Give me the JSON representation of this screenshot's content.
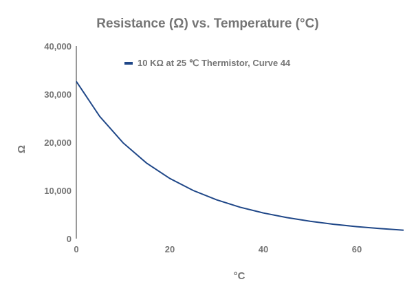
{
  "chart_data": {
    "type": "line",
    "title": "Resistance (Ω) vs. Temperature (°C)",
    "xlabel": "°C",
    "ylabel": "Ω",
    "xlim": [
      0,
      70
    ],
    "ylim": [
      0,
      40000
    ],
    "x_ticks": [
      0,
      20,
      40,
      60
    ],
    "x_tick_labels": [
      "0",
      "20",
      "40",
      "60"
    ],
    "y_ticks": [
      0,
      10000,
      20000,
      30000,
      40000
    ],
    "y_tick_labels": [
      "0",
      "10,000",
      "20,000",
      "30,000",
      "40,000"
    ],
    "grid": false,
    "legend_position": "top",
    "x": [
      0,
      5,
      10,
      15,
      20,
      25,
      30,
      35,
      40,
      45,
      50,
      55,
      60,
      65,
      70
    ],
    "series": [
      {
        "name": "10 KΩ at 25 ℃ Thermistor, Curve 44",
        "color": "#1f4788",
        "values": [
          32650,
          25390,
          19900,
          15710,
          12490,
          10000,
          8057,
          6530,
          5327,
          4370,
          3603,
          2986,
          2488,
          2083,
          1752
        ]
      }
    ]
  }
}
